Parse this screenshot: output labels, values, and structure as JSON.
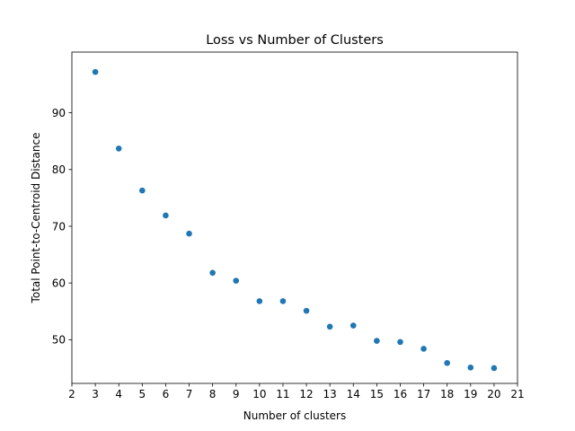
{
  "chart_data": {
    "type": "scatter",
    "title": "Loss vs Number of Clusters",
    "xlabel": "Number of clusters",
    "ylabel": "Total Point-to-Centroid Distance",
    "xlim": [
      2,
      21
    ],
    "ylim": [
      42.3,
      100.7
    ],
    "xticks": [
      2,
      3,
      4,
      5,
      6,
      7,
      8,
      9,
      10,
      11,
      12,
      13,
      14,
      15,
      16,
      17,
      18,
      19,
      20,
      21
    ],
    "yticks": [
      50,
      60,
      70,
      80,
      90
    ],
    "grid": false,
    "marker_color": "#1f77b4",
    "series": [
      {
        "x": [
          3,
          4,
          5,
          6,
          7,
          8,
          9,
          10,
          11,
          12,
          13,
          14,
          15,
          16,
          17,
          18,
          19,
          20
        ],
        "y": [
          97.2,
          83.7,
          76.3,
          71.9,
          68.7,
          61.8,
          60.4,
          56.8,
          56.8,
          55.1,
          52.3,
          52.5,
          49.8,
          49.6,
          48.4,
          45.9,
          45.1,
          45.0
        ]
      }
    ]
  }
}
